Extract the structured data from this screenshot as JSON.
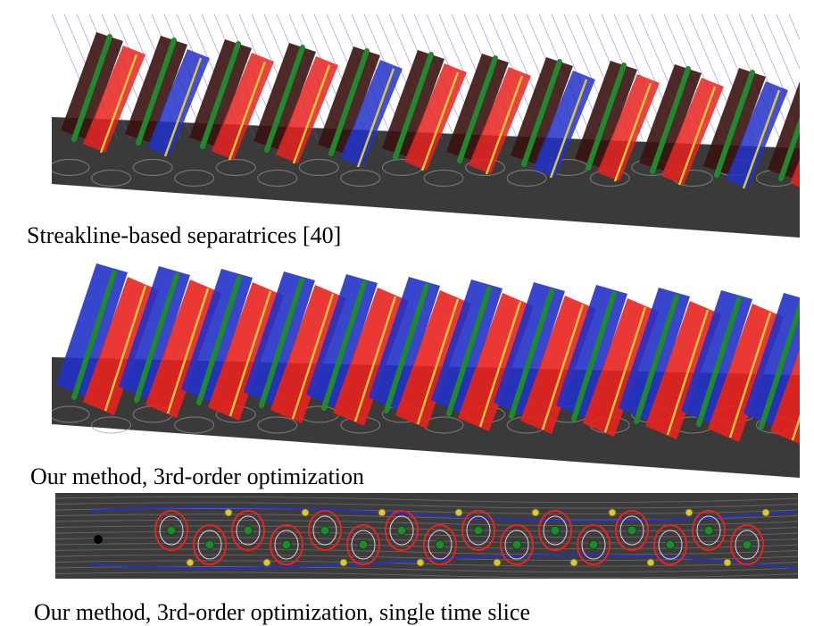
{
  "figure": {
    "captions": [
      "Streakline-based separatrices [40]",
      "Our method, 3rd-order optimization",
      "Our method, 3rd-order optimization, single time slice"
    ],
    "colors": {
      "separatrix_red": "#e8231e",
      "separatrix_blue": "#2231c8",
      "vortex_core_green": "#1f8a2b",
      "saddle_yellow": "#d8c83c",
      "pathline_purple": "#7a4fc9",
      "flow_ground_gray": "#3a3a3a"
    }
  }
}
